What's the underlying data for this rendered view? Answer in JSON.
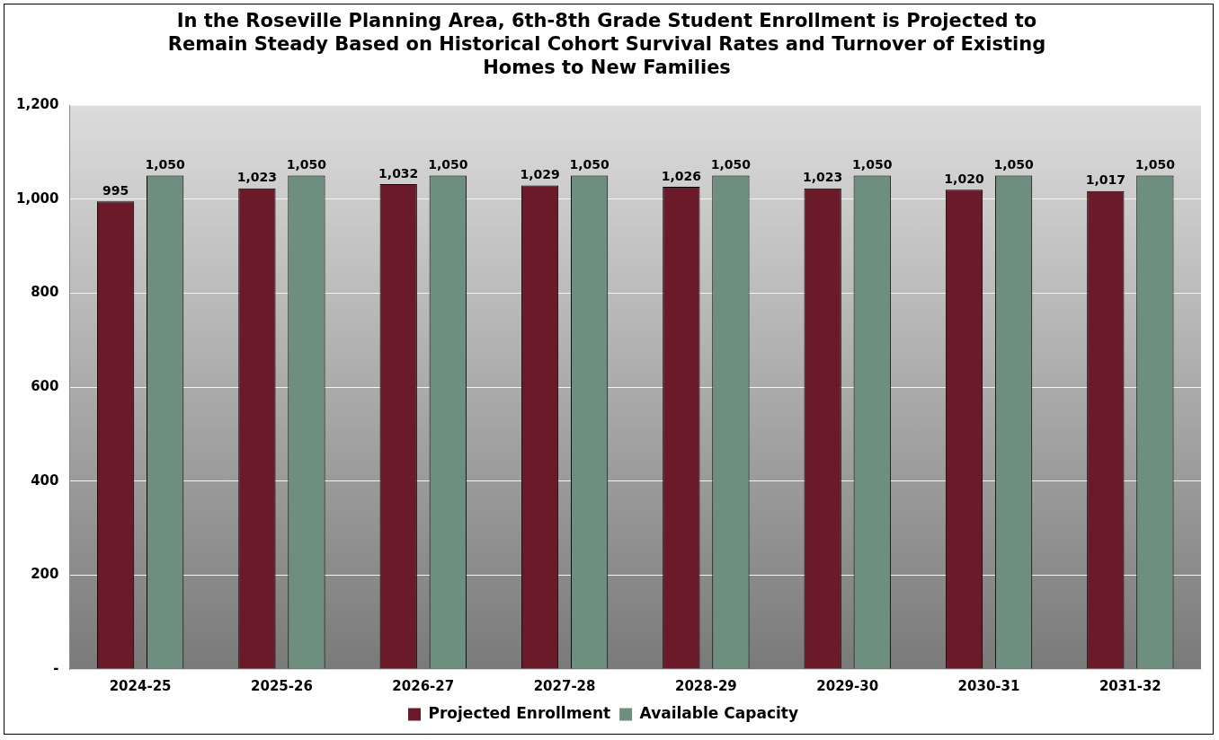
{
  "chart_data": {
    "type": "bar",
    "title": "In the Roseville Planning Area, 6th-8th Grade Student Enrollment is Projected to Remain Steady Based on Historical Cohort Survival Rates and Turnover of Existing Homes to New Families",
    "categories": [
      "2024-25",
      "2025-26",
      "2026-27",
      "2027-28",
      "2028-29",
      "2029-30",
      "2030-31",
      "2031-32"
    ],
    "series": [
      {
        "name": "Projected Enrollment",
        "color": "#6b1a2a",
        "values": [
          995,
          1023,
          1032,
          1029,
          1026,
          1023,
          1020,
          1017
        ],
        "value_labels": [
          "995",
          "1,023",
          "1,032",
          "1,029",
          "1,026",
          "1,023",
          "1,020",
          "1,017"
        ]
      },
      {
        "name": "Available Capacity",
        "color": "#6e8e80",
        "values": [
          1050,
          1050,
          1050,
          1050,
          1050,
          1050,
          1050,
          1050
        ],
        "value_labels": [
          "1,050",
          "1,050",
          "1,050",
          "1,050",
          "1,050",
          "1,050",
          "1,050",
          "1,050"
        ]
      }
    ],
    "ylim": [
      0,
      1200
    ],
    "yticks": [
      {
        "value": 0,
        "label": "-"
      },
      200,
      400,
      600,
      800,
      {
        "value": 1000,
        "label": "1,000"
      },
      {
        "value": 1200,
        "label": "1,200"
      }
    ],
    "grid": "y",
    "legend": "bottom"
  }
}
